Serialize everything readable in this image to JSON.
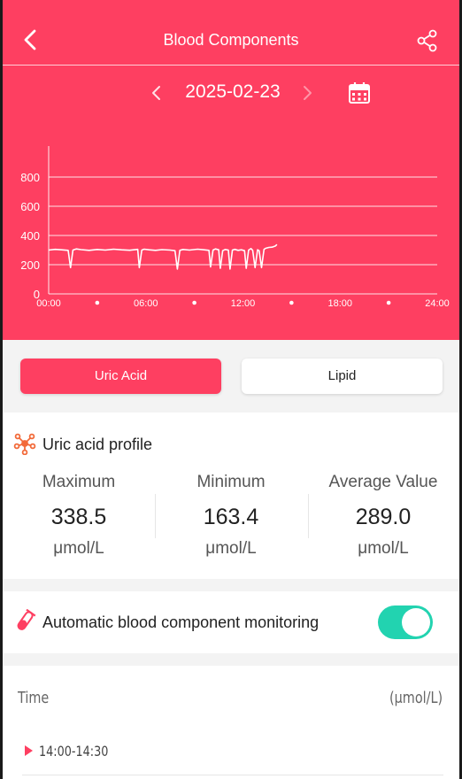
{
  "header": {
    "title": "Blood Components",
    "date": "2025-02-23",
    "accent": "#fe3f61"
  },
  "chart_data": {
    "type": "line",
    "yticks": [
      "0",
      "200",
      "400",
      "600",
      "800"
    ],
    "xticks": [
      "00:00",
      "06:00",
      "12:00",
      "18:00",
      "24:00"
    ],
    "ylim": [
      0,
      900
    ],
    "xlim": [
      0,
      24
    ],
    "grid": true,
    "series": [
      {
        "x": [
          0,
          0.4,
          0.8,
          1.2,
          1.35,
          1.5,
          1.7,
          2.0,
          2.5,
          3.0,
          3.5,
          4.0,
          4.5,
          5.0,
          5.5,
          5.6,
          5.75,
          5.9,
          6.2,
          6.6,
          7.0,
          7.5,
          7.8,
          7.95,
          8.1,
          8.3,
          8.7,
          9.2,
          9.6,
          9.9,
          10.0,
          10.15,
          10.3,
          10.5,
          10.6,
          10.75,
          10.9,
          11.1,
          11.2,
          11.35,
          11.5,
          11.7,
          11.9,
          12.1,
          12.2,
          12.35,
          12.5,
          12.6,
          12.75,
          12.9,
          13.0,
          13.15,
          13.3,
          13.4,
          13.6,
          13.8,
          14.0,
          14.1
        ],
        "values": [
          300,
          305,
          302,
          298,
          180,
          300,
          308,
          303,
          298,
          304,
          300,
          306,
          302,
          299,
          305,
          180,
          300,
          306,
          302,
          298,
          303,
          300,
          296,
          170,
          298,
          304,
          300,
          306,
          302,
          298,
          185,
          300,
          308,
          302,
          175,
          296,
          304,
          300,
          170,
          300,
          305,
          298,
          302,
          296,
          175,
          300,
          310,
          298,
          180,
          302,
          296,
          180,
          305,
          312,
          318,
          320,
          328,
          338
        ]
      }
    ]
  },
  "tabs": {
    "uric": "Uric Acid",
    "lipid": "Lipid"
  },
  "profile": {
    "title": "Uric acid profile",
    "stats": [
      {
        "label": "Maximum",
        "value": "338.5",
        "unit": "μmol/L"
      },
      {
        "label": "Minimum",
        "value": "163.4",
        "unit": "μmol/L"
      },
      {
        "label": "Average Value",
        "value": "289.0",
        "unit": "μmol/L"
      }
    ]
  },
  "monitor": {
    "label": "Automatic blood component monitoring",
    "toggle_color": "#22d3b0"
  },
  "list": {
    "time_header": "Time",
    "unit_header": "(μmol/L)",
    "rows": [
      {
        "time": "14:00-14:30"
      }
    ]
  }
}
